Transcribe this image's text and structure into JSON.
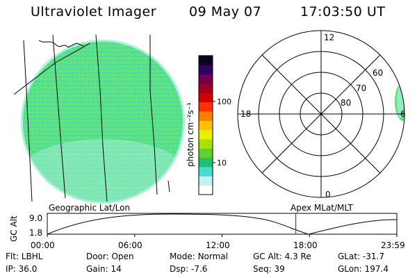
{
  "header": {
    "title": "Ultraviolet Imager",
    "date": "09 May 07",
    "time": "17:03:50 UT"
  },
  "colorbar": {
    "axis_label": "photon cm⁻²s⁻¹",
    "tick_labels": [
      "100",
      "10"
    ],
    "ticks": [
      100,
      10
    ],
    "range": [
      2,
      600
    ],
    "scale": "log",
    "colors": [
      "#ffffff",
      "#c8f0f0",
      "#40e0d0",
      "#20c070",
      "#60d030",
      "#a8e000",
      "#e8f000",
      "#ffc000",
      "#ff8000",
      "#ff3000",
      "#d00000",
      "#a00020",
      "#700050",
      "#300060",
      "#100020"
    ]
  },
  "geo_panel": {
    "label": "Geographic Lat/Lon",
    "disk_color": "#5fe07f",
    "edge_color": "#a8f0e0"
  },
  "polar_panel": {
    "label": "Apex MLat/MLT",
    "lat_labels": [
      "60",
      "70",
      "80"
    ],
    "mlt_labels": [
      "12",
      "18",
      "0",
      "6"
    ]
  },
  "orbit_plot": {
    "ylabel": "GC Alt",
    "y_ticks": [
      "9.0",
      "1.8"
    ],
    "x_ticks": [
      "00:00",
      "06:00",
      "12:00",
      "18:00",
      "23:59"
    ],
    "marker_time_hours": 17.06,
    "marker_color": "#ff0000"
  },
  "status": {
    "row1": [
      {
        "label": "Flt:",
        "value": "LBHL"
      },
      {
        "label": "Door:",
        "value": "Open"
      },
      {
        "label": "Mode:",
        "value": "Normal"
      },
      {
        "label": "GC Alt:",
        "value": "4.3 Re"
      },
      {
        "label": "GLat:",
        "value": "-31.7"
      }
    ],
    "row2": [
      {
        "label": "IP:",
        "value": "36.0"
      },
      {
        "label": "Gain:",
        "value": "14"
      },
      {
        "label": "Dsp:",
        "value": "-7.6"
      },
      {
        "label": "Seq:",
        "value": "39"
      },
      {
        "label": "GLon:",
        "value": "197.4"
      }
    ]
  }
}
